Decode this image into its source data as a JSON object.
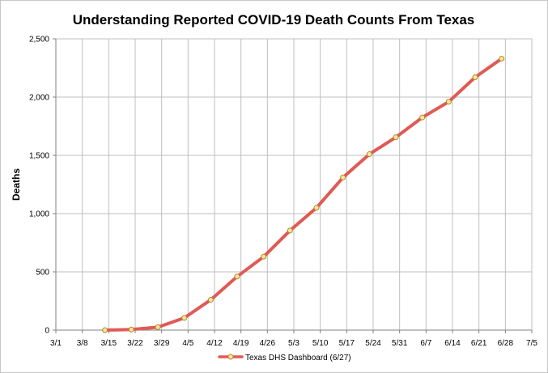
{
  "chart_data": {
    "type": "line",
    "title": "Understanding Reported COVID-19 Death Counts From Texas",
    "xlabel": "",
    "ylabel": "Deaths",
    "x_ticks": [
      "3/1",
      "3/8",
      "3/15",
      "3/22",
      "3/29",
      "4/5",
      "4/12",
      "4/19",
      "4/26",
      "5/3",
      "5/10",
      "5/17",
      "5/24",
      "5/31",
      "6/7",
      "6/14",
      "6/21",
      "6/28",
      "7/5"
    ],
    "y_ticks": [
      "0",
      "500",
      "1,000",
      "1,500",
      "2,000",
      "2,500"
    ],
    "xlim": [
      "3/1",
      "7/5"
    ],
    "ylim": [
      0,
      2500
    ],
    "grid": true,
    "legend_position": "bottom",
    "series": [
      {
        "name": "Texas DHS Dashboard (6/27)",
        "color": "#e05a55",
        "marker_color": "#f5e79e",
        "x": [
          "3/14",
          "3/21",
          "3/28",
          "4/4",
          "4/11",
          "4/18",
          "4/25",
          "5/2",
          "5/9",
          "5/16",
          "5/23",
          "5/30",
          "6/6",
          "6/13",
          "6/20",
          "6/27"
        ],
        "values": [
          0,
          5,
          25,
          105,
          260,
          460,
          630,
          855,
          1050,
          1310,
          1510,
          1655,
          1825,
          1960,
          2170,
          2330
        ]
      }
    ]
  }
}
